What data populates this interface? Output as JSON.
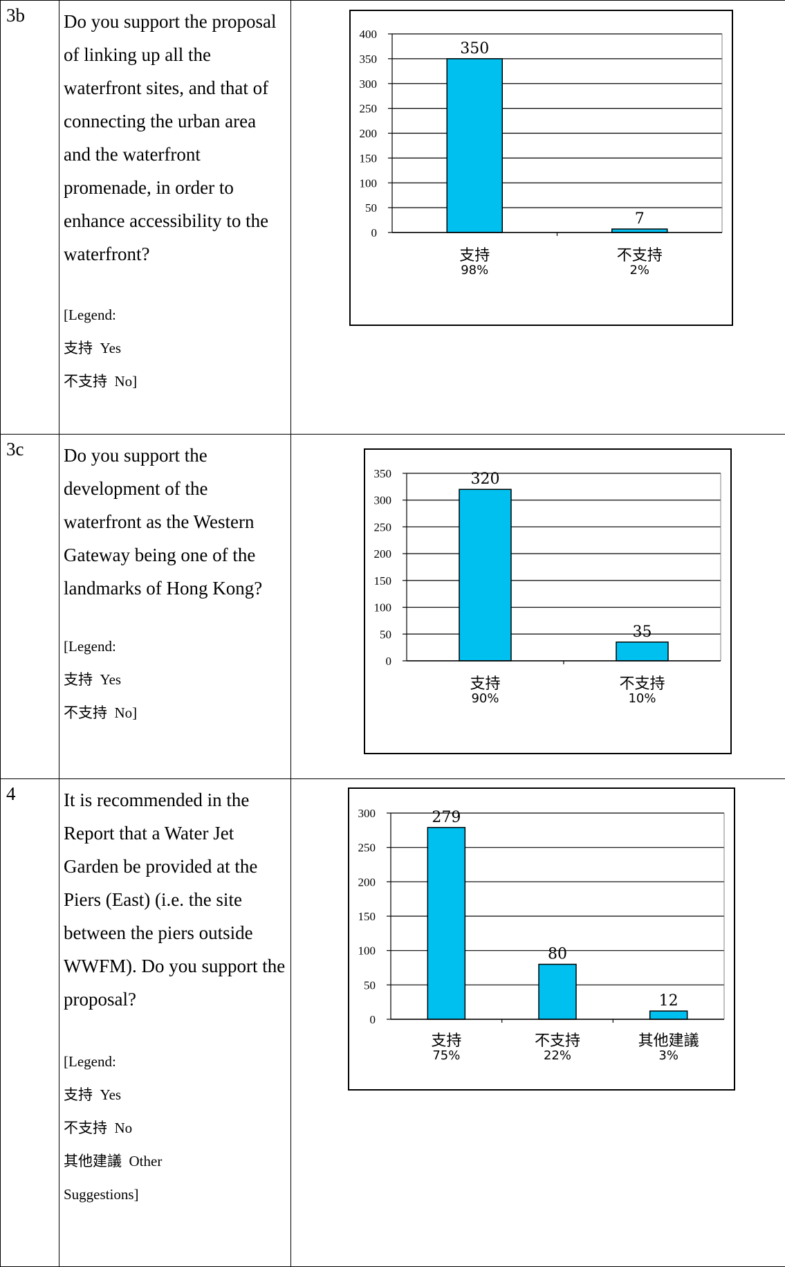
{
  "rows": [
    {
      "id": "3b",
      "question": "Do you support the proposal of linking up all the waterfront sites, and that of connecting the urban area and the waterfront promenade, in order to enhance accessibility to the waterfront?",
      "legend": [
        {
          "zh": "",
          "en": "[Legend:"
        },
        {
          "zh": "支持",
          "en": "Yes"
        },
        {
          "zh": "不支持",
          "en": "No]"
        }
      ]
    },
    {
      "id": "3c",
      "question": "Do you support the development of the waterfront as the Western Gateway being one of the landmarks of Hong Kong?",
      "legend": [
        {
          "zh": "",
          "en": "[Legend:"
        },
        {
          "zh": "支持",
          "en": "Yes"
        },
        {
          "zh": "不支持",
          "en": "No]"
        }
      ]
    },
    {
      "id": "4",
      "question": "It is recommended in the Report that a Water Jet Garden be provided at the Piers (East) (i.e. the site between the piers outside WWFM). Do you support the proposal?",
      "legend": [
        {
          "zh": "",
          "en": "[Legend:"
        },
        {
          "zh": "支持",
          "en": "Yes"
        },
        {
          "zh": "不支持",
          "en": "No"
        },
        {
          "zh": "其他建議",
          "en": "Other"
        },
        {
          "zh": "",
          "en": "Suggestions]"
        }
      ]
    }
  ],
  "chart_data": [
    {
      "type": "bar",
      "categories": [
        "支持",
        "不支持"
      ],
      "percentages": [
        "98%",
        "2%"
      ],
      "values": [
        350,
        7
      ],
      "ylim": [
        0,
        400
      ],
      "yticks": [
        0,
        50,
        100,
        150,
        200,
        250,
        300,
        350,
        400
      ],
      "bar_color": "#00c0f0",
      "grid": true
    },
    {
      "type": "bar",
      "categories": [
        "支持",
        "不支持"
      ],
      "percentages": [
        "90%",
        "10%"
      ],
      "values": [
        320,
        35
      ],
      "ylim": [
        0,
        350
      ],
      "yticks": [
        0,
        50,
        100,
        150,
        200,
        250,
        300,
        350
      ],
      "bar_color": "#00c0f0",
      "grid": true
    },
    {
      "type": "bar",
      "categories": [
        "支持",
        "不支持",
        "其他建議"
      ],
      "percentages": [
        "75%",
        "22%",
        "3%"
      ],
      "values": [
        279,
        80,
        12
      ],
      "ylim": [
        0,
        300
      ],
      "yticks": [
        0,
        50,
        100,
        150,
        200,
        250,
        300
      ],
      "bar_color": "#00c0f0",
      "grid": true
    }
  ]
}
